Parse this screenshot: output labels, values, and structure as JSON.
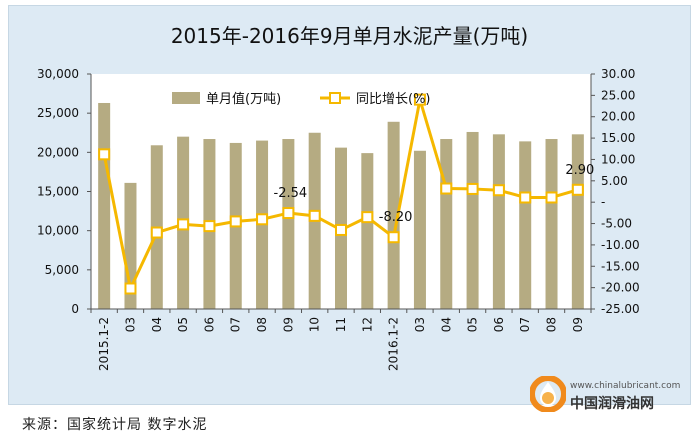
{
  "chart_data": {
    "type": "bar+line",
    "title": "2015年-2016年9月单月水泥产量(万吨)",
    "categories": [
      "2015.1-2",
      "03",
      "04",
      "05",
      "06",
      "07",
      "08",
      "09",
      "10",
      "11",
      "12",
      "2016.1-2",
      "03",
      "04",
      "05",
      "06",
      "07",
      "08",
      "09"
    ],
    "series": [
      {
        "name": "单月值(万吨)",
        "type": "bar",
        "axis": "left",
        "color": "#b5ab82",
        "values": [
          26300,
          16100,
          20900,
          22000,
          21700,
          21200,
          21500,
          21700,
          22500,
          20600,
          19900,
          23900,
          20200,
          21700,
          22600,
          22300,
          21400,
          21700,
          22300
        ]
      },
      {
        "name": "同比增长(%)",
        "type": "line",
        "axis": "right",
        "color": "#f5b800",
        "values": [
          11.2,
          -20.2,
          -7.1,
          -5.2,
          -5.6,
          -4.5,
          -4.0,
          -2.54,
          -3.2,
          -6.5,
          -3.5,
          -8.2,
          24.0,
          3.2,
          3.1,
          2.8,
          1.1,
          1.1,
          2.9
        ]
      }
    ],
    "data_labels": [
      {
        "series": 1,
        "index": 7,
        "text": "-2.54"
      },
      {
        "series": 1,
        "index": 11,
        "text": "-8.20"
      },
      {
        "series": 1,
        "index": 18,
        "text": "2.90"
      }
    ],
    "y_left": {
      "min": 0,
      "max": 30000,
      "ticks": [
        0,
        5000,
        10000,
        15000,
        20000,
        25000,
        30000
      ],
      "tick_labels": [
        "0",
        "5,000",
        "10,000",
        "15,000",
        "20,000",
        "25,000",
        "30,000"
      ]
    },
    "y_right": {
      "min": -25,
      "max": 30,
      "ticks": [
        -25,
        -20,
        -15,
        -10,
        -5,
        0,
        5,
        10,
        15,
        20,
        25,
        30
      ],
      "tick_labels": [
        "-25.00",
        "-20.00",
        "-15.00",
        "-10.00",
        "-5.00",
        "-",
        "5.00",
        "10.00",
        "15.00",
        "20.00",
        "25.00",
        "30.00"
      ]
    },
    "grid": false,
    "legend_position": "top-center"
  },
  "footer": {
    "source": "来源：国家统计局 数字水泥",
    "brand_url": "www.chinalubricant.com",
    "brand_name": "中国润滑油网"
  }
}
